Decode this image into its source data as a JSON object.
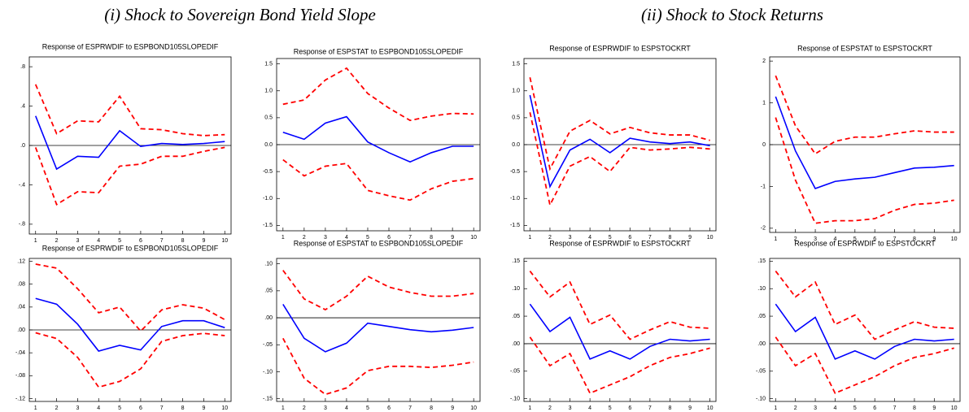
{
  "section_titles": [
    "(i) Shock to Sovereign Bond Yield Slope",
    "(ii) Shock to Stock Returns"
  ],
  "chart_data": [
    {
      "type": "line",
      "title": "Response of ESPRWDIF to ESPBOND105SLOPEDIF",
      "x": [
        1,
        2,
        3,
        4,
        5,
        6,
        7,
        8,
        9,
        10
      ],
      "xlim": [
        0.7,
        10.3
      ],
      "xticks": [
        1,
        2,
        3,
        4,
        5,
        6,
        7,
        8,
        9,
        10
      ],
      "ylim": [
        -0.9,
        0.9
      ],
      "yticks": [
        {
          "value": 0.8,
          "label": ".8"
        },
        {
          "value": 0.4,
          "label": ".4"
        },
        {
          "value": 0,
          "label": ".0"
        },
        {
          "value": -0.4,
          "label": "-.4"
        },
        {
          "value": -0.8,
          "label": "-.8"
        }
      ],
      "series": [
        {
          "color": "#0000ff",
          "dashed": false,
          "values": [
            0.3,
            -0.24,
            -0.11,
            -0.12,
            0.15,
            -0.01,
            0.02,
            0.01,
            0.02,
            0.04
          ]
        },
        {
          "color": "#ff0000",
          "dashed": true,
          "values": [
            0.62,
            0.12,
            0.25,
            0.24,
            0.5,
            0.17,
            0.16,
            0.12,
            0.1,
            0.11
          ]
        },
        {
          "color": "#ff0000",
          "dashed": true,
          "values": [
            -0.02,
            -0.6,
            -0.47,
            -0.48,
            -0.21,
            -0.19,
            -0.11,
            -0.11,
            -0.06,
            -0.02
          ]
        }
      ]
    },
    {
      "type": "line",
      "title": "Response of ESPSTAT to ESPBOND105SLOPEDIF",
      "x": [
        1,
        2,
        3,
        4,
        5,
        6,
        7,
        8,
        9,
        10
      ],
      "xlim": [
        0.7,
        10.3
      ],
      "xticks": [
        1,
        2,
        3,
        4,
        5,
        6,
        7,
        8,
        9,
        10
      ],
      "ylim": [
        -1.6,
        1.6
      ],
      "yticks": [
        1.5,
        {
          "value": 1,
          "label": "1.0"
        },
        0.5,
        {
          "value": 0,
          "label": "0.0"
        },
        -0.5,
        {
          "value": -1,
          "label": "-1.0"
        },
        -1.5
      ],
      "series": [
        {
          "color": "#0000ff",
          "dashed": false,
          "values": [
            0.23,
            0.1,
            0.4,
            0.52,
            0.05,
            -0.15,
            -0.32,
            -0.15,
            -0.03,
            -0.03
          ]
        },
        {
          "color": "#ff0000",
          "dashed": true,
          "values": [
            0.75,
            0.83,
            1.2,
            1.42,
            0.95,
            0.68,
            0.45,
            0.53,
            0.58,
            0.57
          ]
        },
        {
          "color": "#ff0000",
          "dashed": true,
          "values": [
            -0.28,
            -0.58,
            -0.4,
            -0.35,
            -0.85,
            -0.95,
            -1.03,
            -0.82,
            -0.68,
            -0.63
          ]
        }
      ]
    },
    {
      "type": "line",
      "title": "Response of ESPRWDIF to ESPSTOCKRT",
      "x": [
        1,
        2,
        3,
        4,
        5,
        6,
        7,
        8,
        9,
        10
      ],
      "xlim": [
        0.7,
        10.3
      ],
      "xticks": [
        1,
        2,
        3,
        4,
        5,
        6,
        7,
        8,
        9,
        10
      ],
      "ylim": [
        -1.6,
        1.6
      ],
      "yticks": [
        1.5,
        {
          "value": 1,
          "label": "1.0"
        },
        0.5,
        {
          "value": 0,
          "label": "0.0"
        },
        -0.5,
        {
          "value": -1,
          "label": "-1.0"
        },
        -1.5
      ],
      "series": [
        {
          "color": "#0000ff",
          "dashed": false,
          "values": [
            0.92,
            -0.78,
            -0.1,
            0.1,
            -0.15,
            0.12,
            0.05,
            0.02,
            0.05,
            -0.02
          ]
        },
        {
          "color": "#ff0000",
          "dashed": true,
          "values": [
            1.25,
            -0.45,
            0.25,
            0.45,
            0.2,
            0.32,
            0.22,
            0.18,
            0.18,
            0.08
          ]
        },
        {
          "color": "#ff0000",
          "dashed": true,
          "values": [
            0.6,
            -1.12,
            -0.4,
            -0.22,
            -0.5,
            -0.05,
            -0.1,
            -0.08,
            -0.05,
            -0.08
          ]
        }
      ]
    },
    {
      "type": "line",
      "title": "Response of ESPSTAT to ESPSTOCKRT",
      "x": [
        1,
        2,
        3,
        4,
        5,
        6,
        7,
        8,
        9,
        10
      ],
      "xlim": [
        0.7,
        10.3
      ],
      "xticks": [
        1,
        2,
        3,
        4,
        5,
        6,
        7,
        8,
        9,
        10
      ],
      "ylim": [
        -2.1,
        2.1
      ],
      "yticks": [
        2,
        1,
        0,
        -1,
        -2
      ],
      "series": [
        {
          "color": "#0000ff",
          "dashed": false,
          "values": [
            1.15,
            -0.15,
            -1.05,
            -0.88,
            -0.82,
            -0.78,
            -0.67,
            -0.56,
            -0.54,
            -0.5
          ]
        },
        {
          "color": "#ff0000",
          "dashed": true,
          "values": [
            1.65,
            0.45,
            -0.22,
            0.08,
            0.18,
            0.18,
            0.26,
            0.33,
            0.3,
            0.3
          ]
        },
        {
          "color": "#ff0000",
          "dashed": true,
          "values": [
            0.65,
            -0.85,
            -1.88,
            -1.82,
            -1.82,
            -1.77,
            -1.57,
            -1.43,
            -1.4,
            -1.33
          ]
        }
      ]
    },
    {
      "type": "line",
      "title": "Response of ESPRWDIF to ESPBOND105SLOPEDIF",
      "x": [
        1,
        2,
        3,
        4,
        5,
        6,
        7,
        8,
        9,
        10
      ],
      "xlim": [
        0.7,
        10.3
      ],
      "xticks": [
        1,
        2,
        3,
        4,
        5,
        6,
        7,
        8,
        9,
        10
      ],
      "ylim": [
        -0.125,
        0.125
      ],
      "yticks": [
        {
          "value": 0.12,
          "label": ".12"
        },
        {
          "value": 0.08,
          "label": ".08"
        },
        {
          "value": 0.04,
          "label": ".04"
        },
        {
          "value": 0,
          "label": ".00"
        },
        {
          "value": -0.04,
          "label": "-.04"
        },
        {
          "value": -0.08,
          "label": "-.08"
        },
        {
          "value": -0.12,
          "label": "-.12"
        }
      ],
      "series": [
        {
          "color": "#0000ff",
          "dashed": false,
          "values": [
            0.055,
            0.045,
            0.01,
            -0.037,
            -0.027,
            -0.035,
            0.006,
            0.016,
            0.016,
            0.004
          ]
        },
        {
          "color": "#ff0000",
          "dashed": true,
          "values": [
            0.115,
            0.108,
            0.072,
            0.03,
            0.04,
            -0.002,
            0.035,
            0.044,
            0.038,
            0.018
          ]
        },
        {
          "color": "#ff0000",
          "dashed": true,
          "values": [
            -0.005,
            -0.015,
            -0.048,
            -0.1,
            -0.09,
            -0.068,
            -0.02,
            -0.01,
            -0.006,
            -0.01
          ]
        }
      ]
    },
    {
      "type": "line",
      "title": "Response of ESPSTAT to ESPBOND105SLOPEDIF",
      "x": [
        1,
        2,
        3,
        4,
        5,
        6,
        7,
        8,
        9,
        10
      ],
      "xlim": [
        0.7,
        10.3
      ],
      "xticks": [
        1,
        2,
        3,
        4,
        5,
        6,
        7,
        8,
        9,
        10
      ],
      "ylim": [
        -0.155,
        0.11
      ],
      "yticks": [
        {
          "value": 0.1,
          "label": ".10"
        },
        {
          "value": 0.05,
          "label": ".05"
        },
        {
          "value": 0,
          "label": ".00"
        },
        {
          "value": -0.05,
          "label": "-.05"
        },
        {
          "value": -0.1,
          "label": "-.10"
        },
        {
          "value": -0.15,
          "label": "-.15"
        }
      ],
      "series": [
        {
          "color": "#0000ff",
          "dashed": false,
          "values": [
            0.025,
            -0.038,
            -0.063,
            -0.047,
            -0.01,
            -0.016,
            -0.022,
            -0.026,
            -0.023,
            -0.018
          ]
        },
        {
          "color": "#ff0000",
          "dashed": true,
          "values": [
            0.088,
            0.035,
            0.015,
            0.04,
            0.077,
            0.057,
            0.047,
            0.04,
            0.04,
            0.045
          ]
        },
        {
          "color": "#ff0000",
          "dashed": true,
          "values": [
            -0.038,
            -0.112,
            -0.142,
            -0.13,
            -0.098,
            -0.09,
            -0.09,
            -0.092,
            -0.088,
            -0.082
          ]
        }
      ]
    },
    {
      "type": "line",
      "title": "Response of ESPRWDIF to ESPSTOCKRT",
      "x": [
        1,
        2,
        3,
        4,
        5,
        6,
        7,
        8,
        9,
        10
      ],
      "xlim": [
        0.7,
        10.3
      ],
      "xticks": [
        1,
        2,
        3,
        4,
        5,
        6,
        7,
        8,
        9,
        10
      ],
      "ylim": [
        -0.105,
        0.155
      ],
      "yticks": [
        {
          "value": 0.15,
          "label": ".15"
        },
        {
          "value": 0.1,
          "label": ".10"
        },
        {
          "value": 0.05,
          "label": ".05"
        },
        {
          "value": 0,
          "label": ".00"
        },
        {
          "value": -0.05,
          "label": "-.05"
        },
        {
          "value": -0.1,
          "label": "-.10"
        }
      ],
      "series": [
        {
          "color": "#0000ff",
          "dashed": false,
          "values": [
            0.072,
            0.022,
            0.048,
            -0.028,
            -0.013,
            -0.028,
            -0.005,
            0.008,
            0.005,
            0.008
          ]
        },
        {
          "color": "#ff0000",
          "dashed": true,
          "values": [
            0.132,
            0.085,
            0.112,
            0.035,
            0.052,
            0.008,
            0.025,
            0.04,
            0.03,
            0.028
          ]
        },
        {
          "color": "#ff0000",
          "dashed": true,
          "values": [
            0.012,
            -0.04,
            -0.018,
            -0.09,
            -0.075,
            -0.06,
            -0.04,
            -0.025,
            -0.018,
            -0.008
          ]
        }
      ]
    },
    {
      "type": "line",
      "title": "Response of ESPRWDIF to ESPSTOCKRT",
      "x": [
        1,
        2,
        3,
        4,
        5,
        6,
        7,
        8,
        9,
        10
      ],
      "xlim": [
        0.7,
        10.3
      ],
      "xticks": [
        1,
        2,
        3,
        4,
        5,
        6,
        7,
        8,
        9,
        10
      ],
      "ylim": [
        -0.105,
        0.155
      ],
      "yticks": [
        {
          "value": 0.15,
          "label": ".15"
        },
        {
          "value": 0.1,
          "label": ".10"
        },
        {
          "value": 0.05,
          "label": ".05"
        },
        {
          "value": 0,
          "label": ".00"
        },
        {
          "value": -0.05,
          "label": "-.05"
        },
        {
          "value": -0.1,
          "label": "-.10"
        }
      ],
      "series": [
        {
          "color": "#0000ff",
          "dashed": false,
          "values": [
            0.072,
            0.022,
            0.048,
            -0.028,
            -0.013,
            -0.028,
            -0.005,
            0.008,
            0.005,
            0.008
          ]
        },
        {
          "color": "#ff0000",
          "dashed": true,
          "values": [
            0.132,
            0.085,
            0.112,
            0.035,
            0.052,
            0.008,
            0.025,
            0.04,
            0.03,
            0.028
          ]
        },
        {
          "color": "#ff0000",
          "dashed": true,
          "values": [
            0.012,
            -0.04,
            -0.018,
            -0.09,
            -0.075,
            -0.06,
            -0.04,
            -0.025,
            -0.018,
            -0.008
          ]
        }
      ]
    }
  ]
}
